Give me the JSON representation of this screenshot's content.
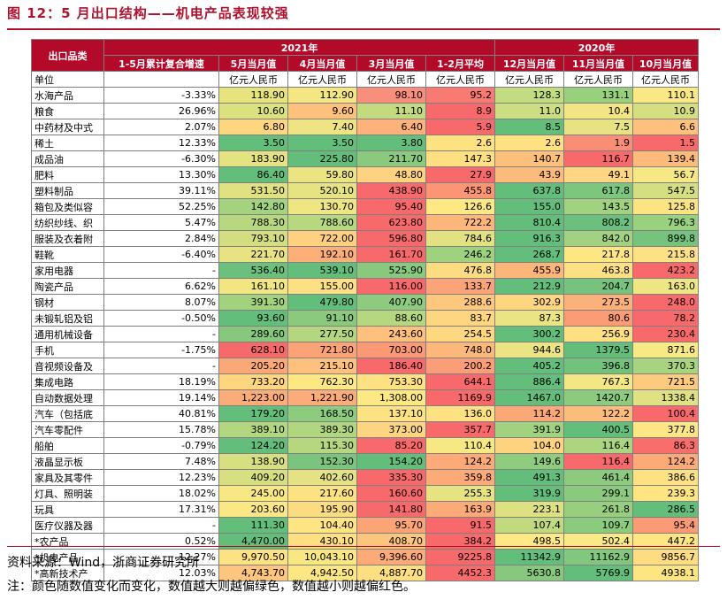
{
  "title": "图 12：5 月出口结构——机电产品表现较强",
  "header": {
    "row_header": "出口品类",
    "group_2021": "2021年",
    "group_2020": "2020年",
    "columns": [
      "1-5月累计复合增速",
      "5月当月值",
      "4月当月值",
      "3月当月值",
      "1-2月平均",
      "12月当月值",
      "11月当月值",
      "10月当月值"
    ]
  },
  "unit_row": {
    "label": "单位",
    "units": [
      "",
      "亿元人民币",
      "亿元人民币",
      "亿元人民币",
      "亿元人民币",
      "亿元人民币",
      "亿元人民币",
      "亿元人民币"
    ]
  },
  "rows": [
    {
      "name": "水海产品",
      "growth": "-3.33%",
      "values": [
        "118.90",
        "112.90",
        "98.10",
        "95.2",
        "128.3",
        "131.1",
        "110.1"
      ],
      "colors": [
        "#e7e37f",
        "#f4e683",
        "#f88e7c",
        "#f77a73",
        "#c2dc80",
        "#98d07d",
        "#f9e884"
      ]
    },
    {
      "name": "粮食",
      "growth": "26.96%",
      "values": [
        "10.60",
        "9.60",
        "11.10",
        "8.9",
        "11.0",
        "10.4",
        "10.9"
      ],
      "colors": [
        "#dce17f",
        "#fdc17d",
        "#c4da80",
        "#f8696b",
        "#cddd81",
        "#f1e683",
        "#d4df81"
      ]
    },
    {
      "name": "中药材及中式",
      "growth": "2.07%",
      "values": [
        "6.80",
        "7.40",
        "6.40",
        "5.9",
        "8.5",
        "7.5",
        "6.6"
      ],
      "colors": [
        "#fed680",
        "#eee483",
        "#fcb27a",
        "#f8696b",
        "#63be7b",
        "#e8e382",
        "#fec17d"
      ]
    },
    {
      "name": "稀土",
      "growth": "12.33%",
      "values": [
        "3.50",
        "3.50",
        "3.80",
        "2.6",
        "2.6",
        "1.9",
        "1.5"
      ],
      "colors": [
        "#63be7b",
        "#63be7b",
        "#63be7b",
        "#fee282",
        "#fee282",
        "#f98e76",
        "#f8696b"
      ]
    },
    {
      "name": "成品油",
      "growth": "-6.30%",
      "values": [
        "183.90",
        "225.80",
        "211.70",
        "147.3",
        "140.7",
        "116.7",
        "139.4"
      ],
      "colors": [
        "#e5e282",
        "#63be7b",
        "#8bc97e",
        "#fee082",
        "#fdc07c",
        "#f8696b",
        "#fdbb7b"
      ]
    },
    {
      "name": "肥料",
      "growth": "13.30%",
      "values": [
        "86.40",
        "59.80",
        "48.80",
        "27.9",
        "43.9",
        "49.1",
        "56.7"
      ],
      "colors": [
        "#63be7b",
        "#ebe483",
        "#fed380",
        "#f8696b",
        "#fcba7b",
        "#fed580",
        "#f6e884"
      ]
    },
    {
      "name": "塑料制品",
      "growth": "39.11%",
      "values": [
        "531.50",
        "520.10",
        "438.90",
        "455.8",
        "637.8",
        "617.8",
        "547.5"
      ],
      "colors": [
        "#e0e282",
        "#e6e382",
        "#f8696b",
        "#fb9574",
        "#63be7b",
        "#7cc67e",
        "#d4df81"
      ]
    },
    {
      "name": "箱包及类似容",
      "growth": "52.25%",
      "values": [
        "142.80",
        "130.70",
        "95.40",
        "126.6",
        "155.0",
        "143.5",
        "125.8"
      ],
      "colors": [
        "#a3d37f",
        "#f0e583",
        "#f8696b",
        "#fee883",
        "#63be7b",
        "#a0d27f",
        "#fde482"
      ]
    },
    {
      "name": "纺织纱线、织",
      "growth": "5.47%",
      "values": [
        "788.30",
        "788.60",
        "623.80",
        "722.2",
        "810.4",
        "808.2",
        "796.3"
      ],
      "colors": [
        "#b8d880",
        "#b8d880",
        "#f8696b",
        "#fcb67a",
        "#63be7b",
        "#6ac07c",
        "#9ad17f"
      ]
    },
    {
      "name": "服装及衣着附",
      "growth": "2.84%",
      "values": [
        "793.10",
        "722.00",
        "596.80",
        "784.6",
        "916.3",
        "842.0",
        "899.8"
      ],
      "colors": [
        "#d3de81",
        "#fed080",
        "#f8696b",
        "#e2e282",
        "#63be7b",
        "#a2d27f",
        "#75c37c"
      ]
    },
    {
      "name": "鞋靴",
      "growth": "-6.40%",
      "values": [
        "221.70",
        "192.10",
        "161.70",
        "246.2",
        "268.7",
        "217.8",
        "215.8"
      ],
      "colors": [
        "#e7e382",
        "#fdaf79",
        "#f8696b",
        "#9fd27f",
        "#63be7b",
        "#fee783",
        "#fde182"
      ]
    },
    {
      "name": "家用电器",
      "growth": "-",
      "values": [
        "536.40",
        "539.10",
        "525.90",
        "476.8",
        "455.9",
        "463.8",
        "423.2"
      ],
      "colors": [
        "#6ac07c",
        "#63be7b",
        "#88c97e",
        "#fcdc81",
        "#fcb67a",
        "#fde082",
        "#f8696b"
      ]
    },
    {
      "name": "陶瓷产品",
      "growth": "6.62%",
      "values": [
        "161.10",
        "155.00",
        "116.00",
        "133.7",
        "212.9",
        "204.7",
        "163.0"
      ],
      "colors": [
        "#f2e683",
        "#fde083",
        "#f8696b",
        "#fca479",
        "#63be7b",
        "#77c37d",
        "#eee583"
      ]
    },
    {
      "name": "钢材",
      "growth": "8.07%",
      "values": [
        "391.30",
        "479.80",
        "407.90",
        "288.6",
        "302.9",
        "273.5",
        "248.0"
      ],
      "colors": [
        "#a3d27f",
        "#63be7b",
        "#8fcb7e",
        "#fdc87d",
        "#fed680",
        "#fbb17a",
        "#f8696b"
      ]
    },
    {
      "name": "未锻轧铝及铝",
      "growth": "-0.50%",
      "values": [
        "93.60",
        "91.10",
        "88.60",
        "83.7",
        "87.3",
        "80.6",
        "78.2"
      ],
      "colors": [
        "#63be7b",
        "#8ac97e",
        "#b5d780",
        "#fed681",
        "#ebe483",
        "#fb9c76",
        "#f8696b"
      ]
    },
    {
      "name": "通用机械设备",
      "growth": "-",
      "values": [
        "289.60",
        "277.50",
        "243.60",
        "254.5",
        "300.2",
        "256.9",
        "230.4"
      ],
      "colors": [
        "#87c87e",
        "#b4d680",
        "#fdc17d",
        "#fed881",
        "#63be7b",
        "#fedf82",
        "#f8696b"
      ]
    },
    {
      "name": "手机",
      "growth": "-1.75%",
      "values": [
        "628.10",
        "721.80",
        "703.00",
        "748.0",
        "944.6",
        "1379.5",
        "871.6"
      ],
      "colors": [
        "#f8696b",
        "#fba377",
        "#fb9876",
        "#fcb87a",
        "#ebe483",
        "#63be7b",
        "#f8e984"
      ]
    },
    {
      "name": "音视频设备及",
      "growth": "-",
      "values": [
        "205.20",
        "215.10",
        "186.40",
        "200.2",
        "405.2",
        "396.8",
        "370.3"
      ],
      "colors": [
        "#fba878",
        "#fdc07d",
        "#f8696b",
        "#fb9d76",
        "#63be7b",
        "#72c27c",
        "#a9d47f"
      ]
    },
    {
      "name": "集成电路",
      "growth": "18.19%",
      "values": [
        "733.20",
        "762.30",
        "753.30",
        "644.1",
        "886.4",
        "767.3",
        "721.5"
      ],
      "colors": [
        "#fed680",
        "#fde883",
        "#fee182",
        "#f8696b",
        "#63be7b",
        "#f3e783",
        "#fdcb7e"
      ]
    },
    {
      "name": "自动数据处理",
      "growth": "19.14%",
      "values": [
        "1,223.00",
        "1,221.90",
        "1,308.00",
        "1169.9",
        "1467.0",
        "1420.7",
        "1338.4"
      ],
      "colors": [
        "#fbad79",
        "#fbac79",
        "#fde983",
        "#f8696b",
        "#63be7b",
        "#8ccb7e",
        "#dfe182"
      ]
    },
    {
      "name": "汽车（包括底",
      "growth": "40.81%",
      "values": [
        "179.20",
        "168.50",
        "137.10",
        "136.0",
        "114.2",
        "122.2",
        "100.4"
      ],
      "colors": [
        "#63be7b",
        "#8dcb7e",
        "#fde283",
        "#fee182",
        "#fba878",
        "#fcbd7c",
        "#f8696b"
      ]
    },
    {
      "name": "汽车零配件",
      "growth": "15.78%",
      "values": [
        "389.10",
        "389.30",
        "373.00",
        "357.7",
        "391.9",
        "400.5",
        "377.8"
      ],
      "colors": [
        "#b3d780",
        "#b1d680",
        "#fdd580",
        "#f8696b",
        "#a0d27f",
        "#63be7b",
        "#fde683"
      ]
    },
    {
      "name": "船舶",
      "growth": "-0.79%",
      "values": [
        "124.20",
        "115.30",
        "85.20",
        "110.4",
        "104.0",
        "116.4",
        "86.3"
      ],
      "colors": [
        "#63be7b",
        "#b6d780",
        "#f8696b",
        "#f6e883",
        "#fdd37f",
        "#abd57f",
        "#f96d6c"
      ]
    },
    {
      "name": "液晶显示板",
      "growth": "7.48%",
      "values": [
        "138.90",
        "152.30",
        "154.20",
        "124.2",
        "149.6",
        "116.4",
        "124.2"
      ],
      "colors": [
        "#d7df81",
        "#7ac47d",
        "#63be7b",
        "#fbaa78",
        "#90cc7e",
        "#f8696b",
        "#fbaa78"
      ]
    },
    {
      "name": "家具及其零件",
      "growth": "12.23%",
      "values": [
        "409.20",
        "402.60",
        "335.30",
        "359.8",
        "491.3",
        "461.4",
        "386.6"
      ],
      "colors": [
        "#d8df81",
        "#e4e282",
        "#f8696b",
        "#fcaa78",
        "#63be7b",
        "#8cca7e",
        "#fde182"
      ]
    },
    {
      "name": "灯具、照明装",
      "growth": "18.02%",
      "values": [
        "245.00",
        "217.60",
        "160.60",
        "255.3",
        "319.9",
        "299.1",
        "239.3"
      ],
      "colors": [
        "#f7e883",
        "#fde282",
        "#f8696b",
        "#e7e382",
        "#63be7b",
        "#8ac97e",
        "#fee582"
      ]
    },
    {
      "name": "玩具",
      "growth": "17.31%",
      "values": [
        "203.60",
        "195.90",
        "141.80",
        "163.9",
        "223.1",
        "261.8",
        "286.5"
      ],
      "colors": [
        "#fbe783",
        "#fcdc81",
        "#f8696b",
        "#fbaa78",
        "#dde182",
        "#98cf7e",
        "#63be7b"
      ]
    },
    {
      "name": "医疗仪器及器",
      "growth": "-",
      "values": [
        "111.30",
        "104.40",
        "95.70",
        "91.5",
        "107.4",
        "109.7",
        "95.4"
      ],
      "colors": [
        "#63be7b",
        "#fee482",
        "#fba577",
        "#f8696b",
        "#c1da80",
        "#8acb7e",
        "#fb9b75"
      ]
    },
    {
      "name": "*农产品",
      "growth": "0.52%",
      "values": [
        "4,470.00",
        "430.10",
        "408.70",
        "384.2",
        "498.5",
        "502.4",
        "447.2"
      ],
      "colors": [
        "#63be7b",
        "#fee082",
        "#fcc57d",
        "#f8696b",
        "#feea84",
        "#f8ea84",
        "#fee783"
      ]
    },
    {
      "name": "*机电产品",
      "growth": "12.27%",
      "values": [
        "9,970.50",
        "10,043.10",
        "9,396.60",
        "9225.8",
        "11342.9",
        "11162.9",
        "9856.7"
      ],
      "colors": [
        "#fce283",
        "#f8e884",
        "#fbaa78",
        "#f8696b",
        "#63be7b",
        "#81c77d",
        "#fedc81"
      ]
    },
    {
      "name": "*高新技术产",
      "growth": "12.03%",
      "values": [
        "4,743.70",
        "4,942.50",
        "4,887.70",
        "4452.3",
        "5630.8",
        "5769.9",
        "4938.1"
      ],
      "colors": [
        "#fdc57d",
        "#fde782",
        "#fdde81",
        "#f8696b",
        "#87c87e",
        "#63be7b",
        "#fde582"
      ]
    }
  ],
  "source": "资料来源：Wind，浙商证券研究所",
  "note": "注：颜色随数值变化而变化，数值越大则越偏绿色，数值越小则越偏红色。"
}
